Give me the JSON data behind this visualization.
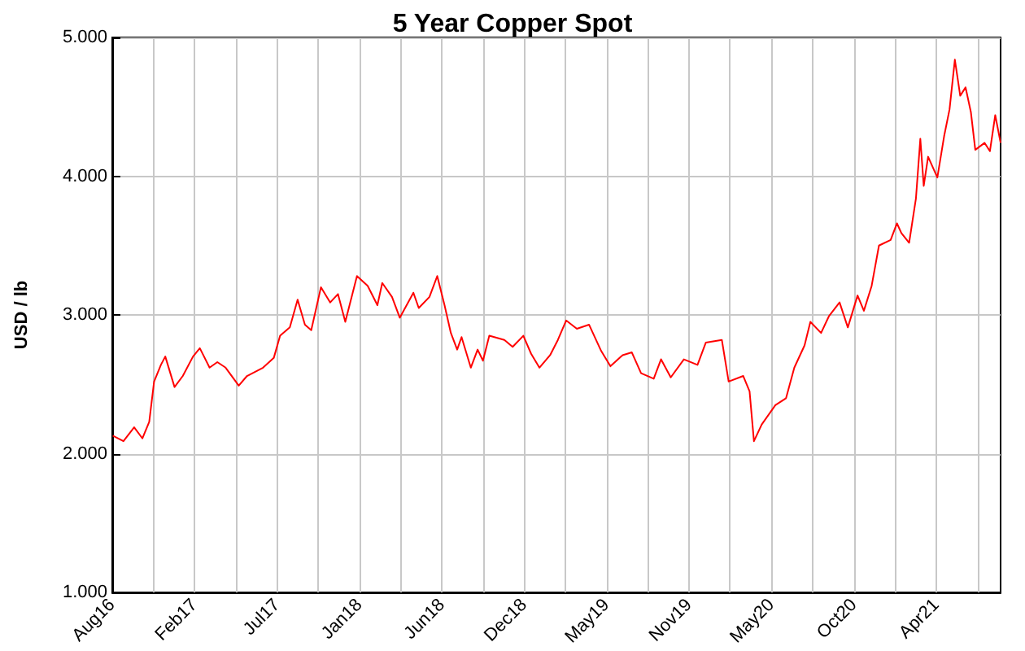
{
  "chart_data": {
    "type": "line",
    "title": "5 Year Copper Spot",
    "ylabel": "USD / lb",
    "x": [
      "2016-08-18",
      "2016-09-09",
      "2016-10-01",
      "2016-10-18",
      "2016-11-01",
      "2016-11-11",
      "2016-11-25",
      "2016-12-04",
      "2016-12-23",
      "2017-01-09",
      "2017-01-30",
      "2017-02-13",
      "2017-03-05",
      "2017-03-21",
      "2017-04-07",
      "2017-05-04",
      "2017-05-21",
      "2017-06-23",
      "2017-07-15",
      "2017-07-28",
      "2017-08-17",
      "2017-09-02",
      "2017-09-17",
      "2017-09-30",
      "2017-10-20",
      "2017-11-08",
      "2017-11-24",
      "2017-12-09",
      "2018-01-02",
      "2018-01-24",
      "2018-02-13",
      "2018-02-23",
      "2018-03-15",
      "2018-03-31",
      "2018-04-28",
      "2018-05-09",
      "2018-05-31",
      "2018-06-16",
      "2018-07-01",
      "2018-07-14",
      "2018-07-27",
      "2018-08-05",
      "2018-08-24",
      "2018-09-07",
      "2018-09-18",
      "2018-10-01",
      "2018-11-01",
      "2018-11-18",
      "2018-12-10",
      "2018-12-26",
      "2019-01-12",
      "2019-02-03",
      "2019-02-19",
      "2019-03-08",
      "2019-03-30",
      "2019-04-24",
      "2019-05-19",
      "2019-06-07",
      "2019-07-02",
      "2019-07-21",
      "2019-08-09",
      "2019-09-04",
      "2019-09-19",
      "2019-10-09",
      "2019-11-05",
      "2019-12-03",
      "2019-12-20",
      "2020-01-22",
      "2020-02-05",
      "2020-03-06",
      "2020-03-19",
      "2020-03-28",
      "2020-04-13",
      "2020-05-11",
      "2020-06-02",
      "2020-06-19",
      "2020-07-10",
      "2020-07-22",
      "2020-08-13",
      "2020-08-29",
      "2020-09-20",
      "2020-10-07",
      "2020-10-27",
      "2020-11-09",
      "2020-11-25",
      "2020-12-10",
      "2021-01-03",
      "2021-01-16",
      "2021-01-25",
      "2021-02-10",
      "2021-02-24",
      "2021-03-05",
      "2021-03-12",
      "2021-03-21",
      "2021-04-09",
      "2021-04-23",
      "2021-05-04",
      "2021-05-15",
      "2021-05-26",
      "2021-06-06",
      "2021-06-17",
      "2021-06-26",
      "2021-07-15",
      "2021-07-26",
      "2021-08-06",
      "2021-08-17"
    ],
    "series": [
      {
        "color": "#ff0000",
        "values": [
          2.13,
          2.09,
          2.19,
          2.11,
          2.23,
          2.52,
          2.64,
          2.7,
          2.48,
          2.56,
          2.7,
          2.76,
          2.62,
          2.66,
          2.62,
          2.49,
          2.56,
          2.62,
          2.69,
          2.85,
          2.91,
          3.11,
          2.93,
          2.89,
          3.2,
          3.09,
          3.15,
          2.95,
          3.28,
          3.21,
          3.07,
          3.23,
          3.13,
          2.98,
          3.16,
          3.05,
          3.13,
          3.28,
          3.07,
          2.87,
          2.75,
          2.84,
          2.62,
          2.75,
          2.67,
          2.85,
          2.82,
          2.77,
          2.85,
          2.72,
          2.62,
          2.71,
          2.82,
          2.96,
          2.9,
          2.93,
          2.74,
          2.63,
          2.71,
          2.73,
          2.58,
          2.54,
          2.68,
          2.55,
          2.68,
          2.64,
          2.8,
          2.82,
          2.52,
          2.56,
          2.45,
          2.09,
          2.21,
          2.35,
          2.4,
          2.62,
          2.78,
          2.95,
          2.87,
          2.99,
          3.09,
          2.91,
          3.14,
          3.03,
          3.21,
          3.5,
          3.54,
          3.66,
          3.59,
          3.52,
          3.84,
          4.27,
          3.93,
          4.14,
          3.99,
          4.29,
          4.48,
          4.84,
          4.58,
          4.64,
          4.46,
          4.19,
          4.24,
          4.18,
          4.44,
          4.24
        ]
      }
    ],
    "xlim": [
      "2016-08-17",
      "2021-08-17"
    ],
    "xticks": [
      {
        "value": "2016-08-17",
        "label": "Aug16"
      },
      {
        "value": "2016-11-09",
        "label": null
      },
      {
        "value": "2017-02-02",
        "label": "Feb17"
      },
      {
        "value": "2017-04-28",
        "label": null
      },
      {
        "value": "2017-07-22",
        "label": "Jul17"
      },
      {
        "value": "2017-10-14",
        "label": null
      },
      {
        "value": "2018-01-07",
        "label": "Jan18"
      },
      {
        "value": "2018-04-02",
        "label": null
      },
      {
        "value": "2018-06-26",
        "label": "Jun18"
      },
      {
        "value": "2018-09-18",
        "label": null
      },
      {
        "value": "2018-12-12",
        "label": "Dec18"
      },
      {
        "value": "2019-03-07",
        "label": null
      },
      {
        "value": "2019-05-30",
        "label": "May19"
      },
      {
        "value": "2019-08-23",
        "label": null
      },
      {
        "value": "2019-11-16",
        "label": "Nov19"
      },
      {
        "value": "2020-02-08",
        "label": null
      },
      {
        "value": "2020-05-03",
        "label": "May20"
      },
      {
        "value": "2020-07-27",
        "label": null
      },
      {
        "value": "2020-10-20",
        "label": "Oct20"
      },
      {
        "value": "2021-01-12",
        "label": null
      },
      {
        "value": "2021-04-07",
        "label": "Apr21"
      },
      {
        "value": "2021-07-01",
        "label": null
      }
    ],
    "ylim": [
      1,
      5
    ],
    "yticks": [
      {
        "value": 1,
        "label": "1.000"
      },
      {
        "value": 2,
        "label": "2.000"
      },
      {
        "value": 3,
        "label": "3.000"
      },
      {
        "value": 4,
        "label": "4.000"
      },
      {
        "value": 5,
        "label": "5.000"
      }
    ],
    "grid": true,
    "marker": "none",
    "line_style": "solid"
  }
}
